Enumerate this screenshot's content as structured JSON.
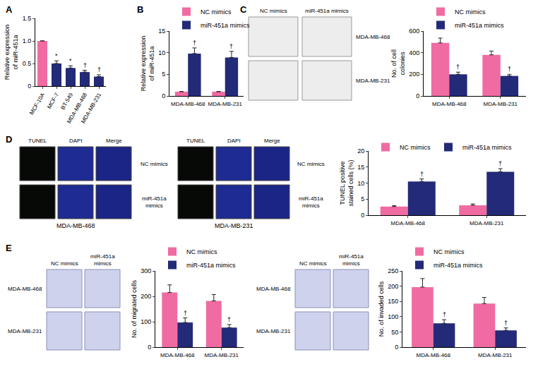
{
  "chart_data": [
    {
      "panel": "A",
      "type": "bar",
      "categories": [
        "MCF-10A",
        "MCF-7",
        "BT-549",
        "MDA-MB-468",
        "MDA-MB-231"
      ],
      "values": [
        1,
        0.5,
        0.4,
        0.31,
        0.21
      ],
      "errors": [
        0,
        0.06,
        0.05,
        0.04,
        0.04
      ],
      "colors": [
        "#f06ba2",
        "#232a77",
        "#232a77",
        "#232a77",
        "#232a77"
      ],
      "significance": [
        null,
        "*",
        "*",
        "†",
        "†"
      ],
      "y_label": "Relative expression of miR-451a",
      "ylim": [
        0,
        1.5
      ],
      "yticks": [
        0,
        0.5,
        {
          "value": 1,
          "label": "1.0"
        },
        1.5
      ],
      "grid": false
    },
    {
      "panel": "B",
      "type": "bar",
      "categories": [
        "MDA-MB-468",
        "MDA-MB-231"
      ],
      "series": [
        {
          "name": "NC mimics",
          "color": "#f06ba2",
          "values": [
            1,
            1
          ],
          "errors": [
            0,
            0
          ]
        },
        {
          "name": "miR-451a mimics",
          "color": "#232a77",
          "values": [
            9.8,
            8.9
          ],
          "errors": [
            1.3,
            1.4
          ],
          "significance": [
            "†",
            "†"
          ]
        }
      ],
      "y_label": "Relative expression of miR-451a",
      "ylim": [
        0,
        15
      ],
      "yticks": [
        0,
        5,
        10,
        15
      ],
      "legend": "top",
      "grid": false
    },
    {
      "type": "bar",
      "categories": [
        "MDA-MB-468",
        "MDA-MB-231"
      ],
      "series": [
        {
          "name": "NC mimics",
          "color": "#f06ba2",
          "values": [
            490,
            380
          ],
          "errors": [
            45,
            35
          ]
        },
        {
          "name": "miR-451a mimics",
          "color": "#232a77",
          "values": [
            200,
            185
          ],
          "errors": [
            20,
            15
          ],
          "significance": [
            "†",
            "†"
          ]
        }
      ],
      "y_label": "No. of cell colonies",
      "ylim": [
        0,
        600
      ],
      "yticks": [
        0,
        200,
        400,
        600
      ],
      "legend": "top",
      "grid": false
    },
    {
      "type": "bar",
      "categories": [
        "MDA-MB-468",
        "MDA-MB-231"
      ],
      "series": [
        {
          "name": "NC mimics",
          "color": "#f06ba2",
          "values": [
            2.7,
            3.1
          ],
          "errors": [
            0.3,
            0.4
          ]
        },
        {
          "name": "miR-451a mimics",
          "color": "#232a77",
          "values": [
            10.5,
            13.5
          ],
          "errors": [
            0.8,
            1.0
          ],
          "significance": [
            "†",
            "†"
          ]
        }
      ],
      "y_label": "TUNEL positive stained cells (%)",
      "ylim": [
        0,
        20
      ],
      "yticks": [
        0,
        5,
        10,
        15,
        20
      ],
      "legend": "top",
      "grid": false
    },
    {
      "type": "bar",
      "categories": [
        "MDA-MB-468",
        "MDA-MB-231"
      ],
      "series": [
        {
          "name": "NC mimics",
          "color": "#f06ba2",
          "values": [
            215,
            182
          ],
          "errors": [
            30,
            25
          ]
        },
        {
          "name": "miR-451a mimics",
          "color": "#232a77",
          "values": [
            97,
            77
          ],
          "errors": [
            18,
            12
          ],
          "significance": [
            "†",
            "†"
          ]
        }
      ],
      "y_label": "No. of migrated cells",
      "ylim": [
        0,
        300
      ],
      "yticks": [
        0,
        100,
        200,
        300
      ],
      "legend": "top",
      "grid": false
    },
    {
      "type": "bar",
      "categories": [
        "MDA-MB-468",
        "MDA-MB-231"
      ],
      "series": [
        {
          "name": "NC mimics",
          "color": "#f06ba2",
          "values": [
            197,
            143
          ],
          "errors": [
            28,
            20
          ]
        },
        {
          "name": "miR-451a mimics",
          "color": "#232a77",
          "values": [
            78,
            55
          ],
          "errors": [
            12,
            8
          ],
          "significance": [
            "†",
            "†"
          ]
        }
      ],
      "y_label": "No. of invaded cells",
      "ylim": [
        0,
        250
      ],
      "yticks": [
        0,
        50,
        100,
        150,
        200,
        250
      ],
      "legend": "top",
      "grid": false
    }
  ],
  "image_panels": [
    {
      "panel": "C",
      "groups": [
        {
          "columns": [
            "NC mimics",
            "miR-451a mimics"
          ],
          "rows": [
            "MDA-MB-468",
            "MDA-MB-231"
          ]
        }
      ]
    },
    {
      "panel": "D",
      "groups": [
        {
          "label": "MDA-MB-468",
          "columns": [
            "TUNEL",
            "DAPI",
            "Merge"
          ],
          "rows": [
            "NC mimics",
            "miR-451a mimics"
          ]
        },
        {
          "label": "MDA-MB-231",
          "columns": [
            "TUNEL",
            "DAPI",
            "Merge"
          ],
          "rows": [
            "NC mimics",
            "miR-451a mimics"
          ]
        }
      ]
    },
    {
      "panel": "E",
      "groups": [
        {
          "columns": [
            "NC mimics",
            "miR-451a mimics"
          ],
          "rows": [
            "MDA-MB-468",
            "MDA-MB-231"
          ]
        },
        {
          "columns": [
            "NC mimics",
            "miR-451a mimics"
          ],
          "rows": [
            "MDA-MB-468",
            "MDA-MB-231"
          ]
        }
      ]
    }
  ]
}
